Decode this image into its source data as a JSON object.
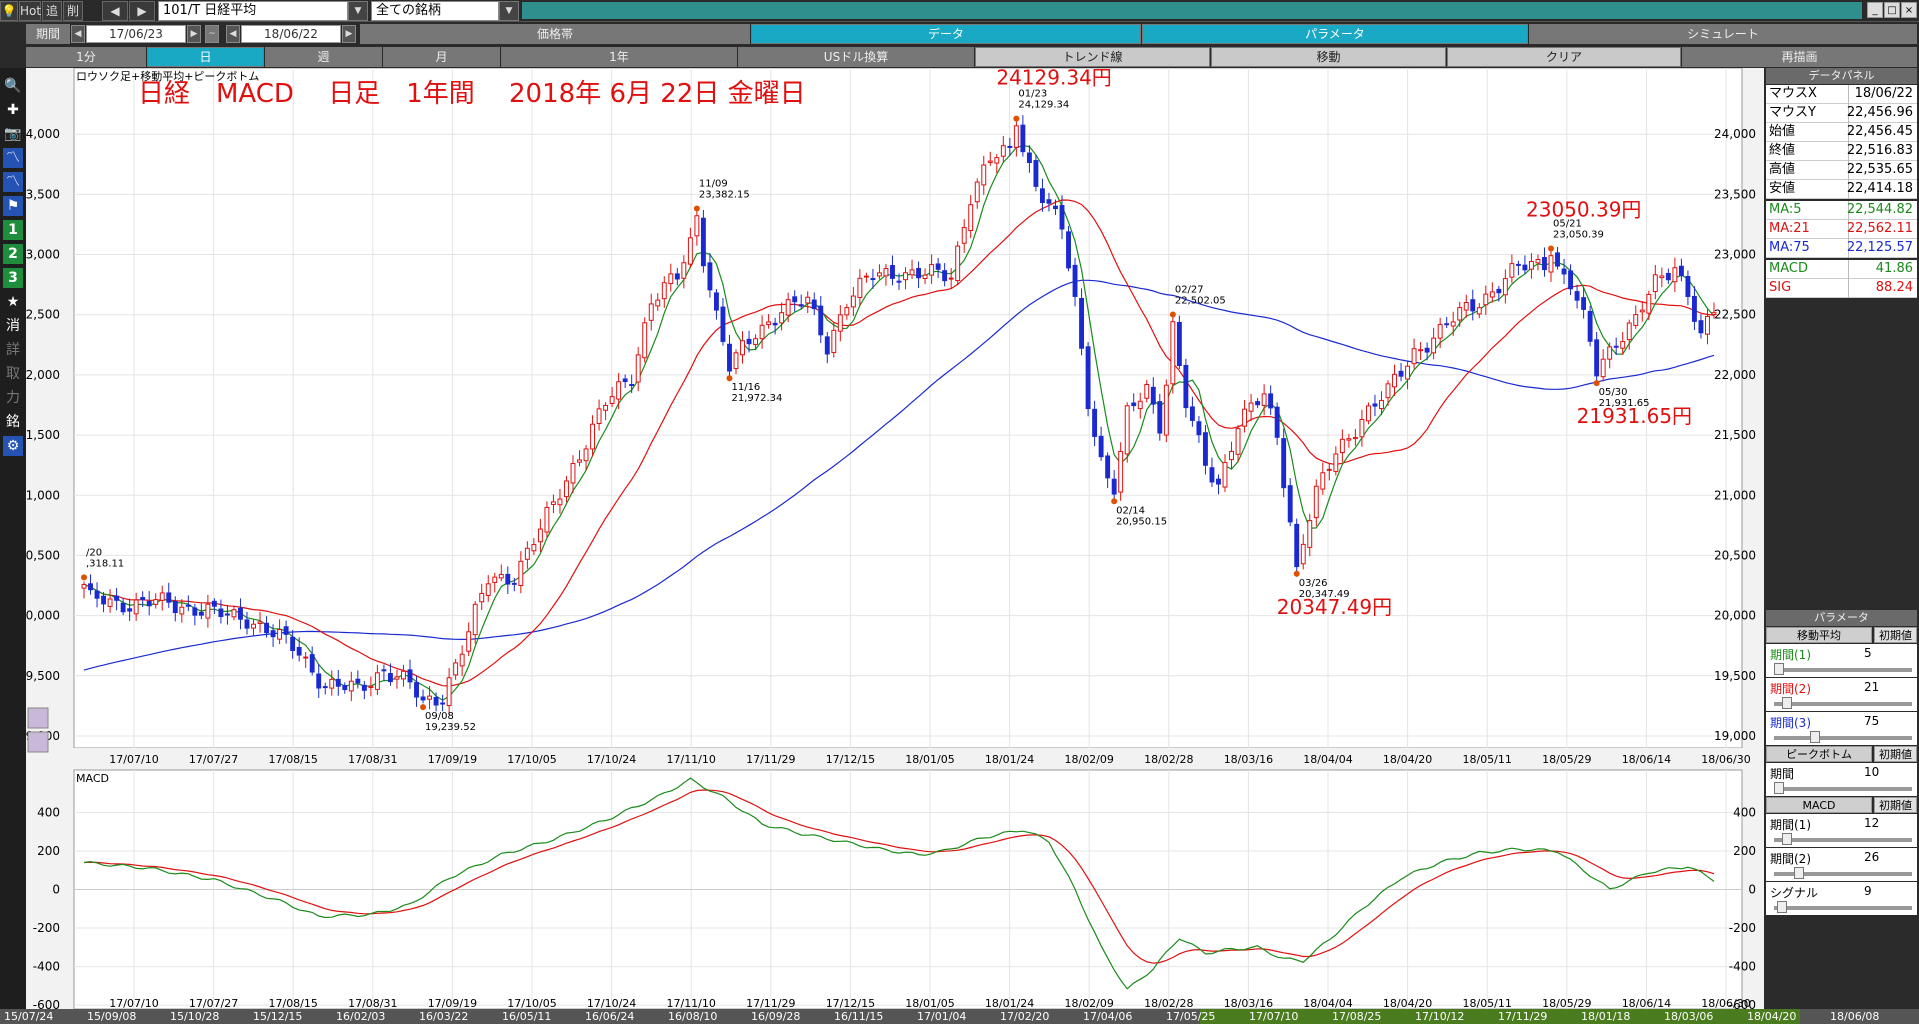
{
  "toolbar": {
    "hot_label": "Hot",
    "add_label": "追",
    "del_label": "削",
    "prev_label": "◀",
    "next_label": "▶",
    "symbol": "101/T 日経平均",
    "universe": "全ての銘柄",
    "win_min": "_",
    "win_max": "□",
    "win_close": "×"
  },
  "row2": {
    "period_label": "期間",
    "start_date": "17/06/23",
    "tilde": "~",
    "end_date": "18/06/22",
    "tabs": [
      "価格帯",
      "データ",
      "パラメータ",
      "シミュレート"
    ]
  },
  "row3": {
    "tabs": [
      "1分",
      "日",
      "週",
      "月",
      "1年",
      "USドル換算",
      "トレンド線",
      "移動",
      "クリア",
      "再描画"
    ]
  },
  "sidebar": {
    "icons": [
      "magnifier-icon",
      "crosshair-icon",
      "camera-icon",
      "line-chart-icon",
      "line-chart-2-icon",
      "flag-icon",
      "number-1-icon",
      "number-2-icon",
      "number-3-icon",
      "star-icon",
      "erase-icon",
      "note-icon",
      "trade-icon",
      "power-icon",
      "stock-icon",
      "gear-icon"
    ],
    "labels": [
      "",
      "",
      "",
      "",
      "",
      "",
      "1",
      "2",
      "3",
      "★",
      "消",
      "詳",
      "取",
      "力",
      "銘",
      ""
    ],
    "mini_icons": [
      "mini-candle-icon",
      "mini-line-icon"
    ]
  },
  "main_chart": {
    "indicator_label": "ロウソク足+移動平均+ピークボトム",
    "title": "日経　MACD　 日足　1年間　 2018年 6月 22日 金曜日",
    "ylim": [
      18900,
      24550
    ],
    "yticks": [
      "24,000",
      "23,500",
      "23,000",
      "22,500",
      "22,000",
      "21,500",
      "21,000",
      "20,500",
      "20,000",
      "19,500",
      "19,000"
    ],
    "ytick_values": [
      24000,
      23500,
      23000,
      22500,
      22000,
      21500,
      21000,
      20500,
      20000,
      19500,
      19000
    ],
    "xticks": [
      "17/07/10",
      "17/07/27",
      "17/08/15",
      "17/08/31",
      "17/09/19",
      "17/10/05",
      "17/10/24",
      "17/11/10",
      "17/11/29",
      "17/12/15",
      "18/01/05",
      "18/01/24",
      "18/02/09",
      "18/02/28",
      "18/03/16",
      "18/04/04",
      "18/04/20",
      "18/05/11",
      "18/05/29",
      "18/06/14",
      "18/06/30"
    ],
    "peaks": [
      {
        "date": "/20",
        "value": ",318.11",
        "kind": "peak",
        "idx": 0,
        "price": 20318.11
      },
      {
        "date": "09/08",
        "value": "19,239.52",
        "kind": "bottom",
        "idx": 52,
        "price": 19239.52
      },
      {
        "date": "11/09",
        "value": "23,382.15",
        "kind": "peak",
        "idx": 94,
        "price": 23382.15
      },
      {
        "date": "11/16",
        "value": "21,972.34",
        "kind": "bottom",
        "idx": 99,
        "price": 21972.34
      },
      {
        "date": "01/23",
        "value": "24,129.34",
        "kind": "peak",
        "idx": 143,
        "price": 24129.34
      },
      {
        "date": "02/14",
        "value": "20,950.15",
        "kind": "bottom",
        "idx": 158,
        "price": 20950.15
      },
      {
        "date": "02/27",
        "value": "22,502.05",
        "kind": "peak",
        "idx": 167,
        "price": 22502.05
      },
      {
        "date": "03/26",
        "value": "20,347.49",
        "kind": "bottom",
        "idx": 186,
        "price": 20347.49
      },
      {
        "date": "05/21",
        "value": "23,050.39",
        "kind": "peak",
        "idx": 225,
        "price": 23050.39
      },
      {
        "date": "05/30",
        "value": "21,931.65",
        "kind": "bottom",
        "idx": 232,
        "price": 21931.65
      }
    ],
    "big_labels": [
      "24129.34円",
      "23050.39円",
      "21931.65円",
      "20347.49円"
    ]
  },
  "macd_chart": {
    "label": "MACD",
    "ylim": [
      -620,
      620
    ],
    "yticks": [
      "400",
      "200",
      "0",
      "-200",
      "-400",
      "-600"
    ],
    "ytick_values": [
      400,
      200,
      0,
      -200,
      -400,
      -600
    ]
  },
  "data_panel": {
    "header": "データパネル",
    "rows": [
      {
        "k": "マウスX",
        "v": "18/06/22",
        "color": "#000000"
      },
      {
        "k": "マウスY",
        "v": "22,456.96",
        "color": "#000000"
      },
      {
        "k": "始値",
        "v": "22,456.45",
        "color": "#000000"
      },
      {
        "k": "終値",
        "v": "22,516.83",
        "color": "#000000"
      },
      {
        "k": "高値",
        "v": "22,535.65",
        "color": "#000000"
      },
      {
        "k": "安値",
        "v": "22,414.18",
        "color": "#000000"
      },
      {
        "k": "MA:5",
        "v": "22,544.82",
        "color": "#1a8a1a"
      },
      {
        "k": "MA:21",
        "v": "22,562.11",
        "color": "#e01010"
      },
      {
        "k": "MA:75",
        "v": "22,125.57",
        "color": "#1a2ad0"
      },
      {
        "k": "MACD",
        "v": "41.86",
        "color": "#1a8a1a"
      },
      {
        "k": "SIG",
        "v": "88.24",
        "color": "#e01010"
      }
    ]
  },
  "param_panel": {
    "header": "パラメータ",
    "sections": [
      {
        "title": "移動平均",
        "reset": "初期値",
        "params": [
          {
            "k": "期間(1)",
            "v": "5",
            "color": "#1a8a1a",
            "pos": 0.0
          },
          {
            "k": "期間(2)",
            "v": "21",
            "color": "#e01010",
            "pos": 0.06
          },
          {
            "k": "期間(3)",
            "v": "75",
            "color": "#1a2ad0",
            "pos": 0.28
          }
        ]
      },
      {
        "title": "ピークボトム",
        "reset": "初期値",
        "params": [
          {
            "k": "期間",
            "v": "10",
            "color": "#000000",
            "pos": 0.0
          }
        ]
      },
      {
        "title": "MACD",
        "reset": "初期値",
        "params": [
          {
            "k": "期間(1)",
            "v": "12",
            "color": "#000000",
            "pos": 0.06
          },
          {
            "k": "期間(2)",
            "v": "26",
            "color": "#000000",
            "pos": 0.16
          },
          {
            "k": "シグナル",
            "v": "9",
            "color": "#000000",
            "pos": 0.02
          }
        ]
      }
    ]
  },
  "timeline": {
    "items": [
      "15/07/24",
      "15/09/08",
      "15/10/28",
      "15/12/15",
      "16/02/03",
      "16/03/22",
      "16/05/11",
      "16/06/24",
      "16/08/10",
      "16/09/28",
      "16/11/15",
      "17/01/04",
      "17/02/20",
      "17/04/06",
      "17/05/25",
      "17/07/10",
      "17/08/25",
      "17/10/12",
      "17/11/29",
      "18/01/18",
      "18/03/06",
      "18/04/20",
      "18/06/08"
    ]
  },
  "colors": {
    "up": "#e01010",
    "down": "#1a2ad0",
    "ma5": "#1a8a1a",
    "ma21": "#e01010",
    "ma75": "#1a2ad0",
    "macd": "#1a8a1a",
    "sig": "#e01010",
    "peak": "#e05000",
    "big_label": "#e01010"
  },
  "chart_data": [
    {
      "type": "candlestick",
      "title": "日経　MACD　 日足　1年間　 2018年 6月 22日 金曜日",
      "subtitle": "ロウソク足+移動平均+ピークボトム",
      "x_range": [
        "17/06/23",
        "18/06/22"
      ],
      "anchors": [
        [
          0,
          20110
        ],
        [
          3,
          20150
        ],
        [
          8,
          20080
        ],
        [
          13,
          20120
        ],
        [
          20,
          20010
        ],
        [
          25,
          19990
        ],
        [
          28,
          19880
        ],
        [
          33,
          19700
        ],
        [
          37,
          19420
        ],
        [
          42,
          19380
        ],
        [
          46,
          19560
        ],
        [
          50,
          19420
        ],
        [
          52,
          19260
        ],
        [
          55,
          19350
        ],
        [
          59,
          19850
        ],
        [
          62,
          20300
        ],
        [
          66,
          20340
        ],
        [
          70,
          20700
        ],
        [
          75,
          21250
        ],
        [
          80,
          21750
        ],
        [
          84,
          22000
        ],
        [
          87,
          22620
        ],
        [
          91,
          22800
        ],
        [
          94,
          23250
        ],
        [
          97,
          22500
        ],
        [
          99,
          22050
        ],
        [
          103,
          22350
        ],
        [
          107,
          22550
        ],
        [
          111,
          22600
        ],
        [
          114,
          22250
        ],
        [
          117,
          22620
        ],
        [
          121,
          22820
        ],
        [
          125,
          22860
        ],
        [
          129,
          22830
        ],
        [
          133,
          22820
        ],
        [
          136,
          23500
        ],
        [
          139,
          23780
        ],
        [
          142,
          23850
        ],
        [
          143,
          24050
        ],
        [
          146,
          23600
        ],
        [
          150,
          23200
        ],
        [
          152,
          22600
        ],
        [
          154,
          21800
        ],
        [
          156,
          21300
        ],
        [
          158,
          21000
        ],
        [
          160,
          21650
        ],
        [
          163,
          21900
        ],
        [
          165,
          21600
        ],
        [
          167,
          22350
        ],
        [
          169,
          21750
        ],
        [
          172,
          21250
        ],
        [
          174,
          21100
        ],
        [
          177,
          21600
        ],
        [
          181,
          21820
        ],
        [
          183,
          21500
        ],
        [
          186,
          20450
        ],
        [
          189,
          21000
        ],
        [
          192,
          21350
        ],
        [
          196,
          21650
        ],
        [
          200,
          21850
        ],
        [
          204,
          22200
        ],
        [
          208,
          22350
        ],
        [
          212,
          22550
        ],
        [
          216,
          22700
        ],
        [
          220,
          22880
        ],
        [
          225,
          22960
        ],
        [
          228,
          22750
        ],
        [
          230,
          22450
        ],
        [
          232,
          22050
        ],
        [
          235,
          22300
        ],
        [
          238,
          22450
        ],
        [
          241,
          22750
        ],
        [
          244,
          22920
        ],
        [
          246,
          22700
        ],
        [
          248,
          22300
        ],
        [
          250,
          22520
        ]
      ],
      "macd_anchors": [
        [
          0,
          140
        ],
        [
          10,
          110
        ],
        [
          20,
          50
        ],
        [
          30,
          -60
        ],
        [
          36,
          -140
        ],
        [
          44,
          -130
        ],
        [
          50,
          -80
        ],
        [
          56,
          60
        ],
        [
          64,
          180
        ],
        [
          72,
          260
        ],
        [
          80,
          360
        ],
        [
          88,
          480
        ],
        [
          93,
          570
        ],
        [
          98,
          480
        ],
        [
          104,
          340
        ],
        [
          110,
          290
        ],
        [
          116,
          250
        ],
        [
          122,
          210
        ],
        [
          128,
          180
        ],
        [
          132,
          200
        ],
        [
          138,
          270
        ],
        [
          144,
          310
        ],
        [
          148,
          250
        ],
        [
          152,
          0
        ],
        [
          156,
          -300
        ],
        [
          160,
          -520
        ],
        [
          164,
          -410
        ],
        [
          168,
          -250
        ],
        [
          172,
          -330
        ],
        [
          176,
          -310
        ],
        [
          180,
          -300
        ],
        [
          184,
          -360
        ],
        [
          187,
          -370
        ],
        [
          191,
          -260
        ],
        [
          196,
          -100
        ],
        [
          202,
          60
        ],
        [
          208,
          140
        ],
        [
          214,
          190
        ],
        [
          220,
          210
        ],
        [
          226,
          200
        ],
        [
          230,
          100
        ],
        [
          234,
          0
        ],
        [
          240,
          90
        ],
        [
          246,
          120
        ],
        [
          250,
          50
        ]
      ],
      "ma_periods": [
        5,
        21,
        75
      ],
      "last_values": {
        "open": 22456.45,
        "close": 22516.83,
        "high": 22535.65,
        "low": 22414.18,
        "ma5": 22544.82,
        "ma21": 22562.11,
        "ma75": 22125.57,
        "macd": 41.86,
        "sig": 88.24
      }
    }
  ]
}
